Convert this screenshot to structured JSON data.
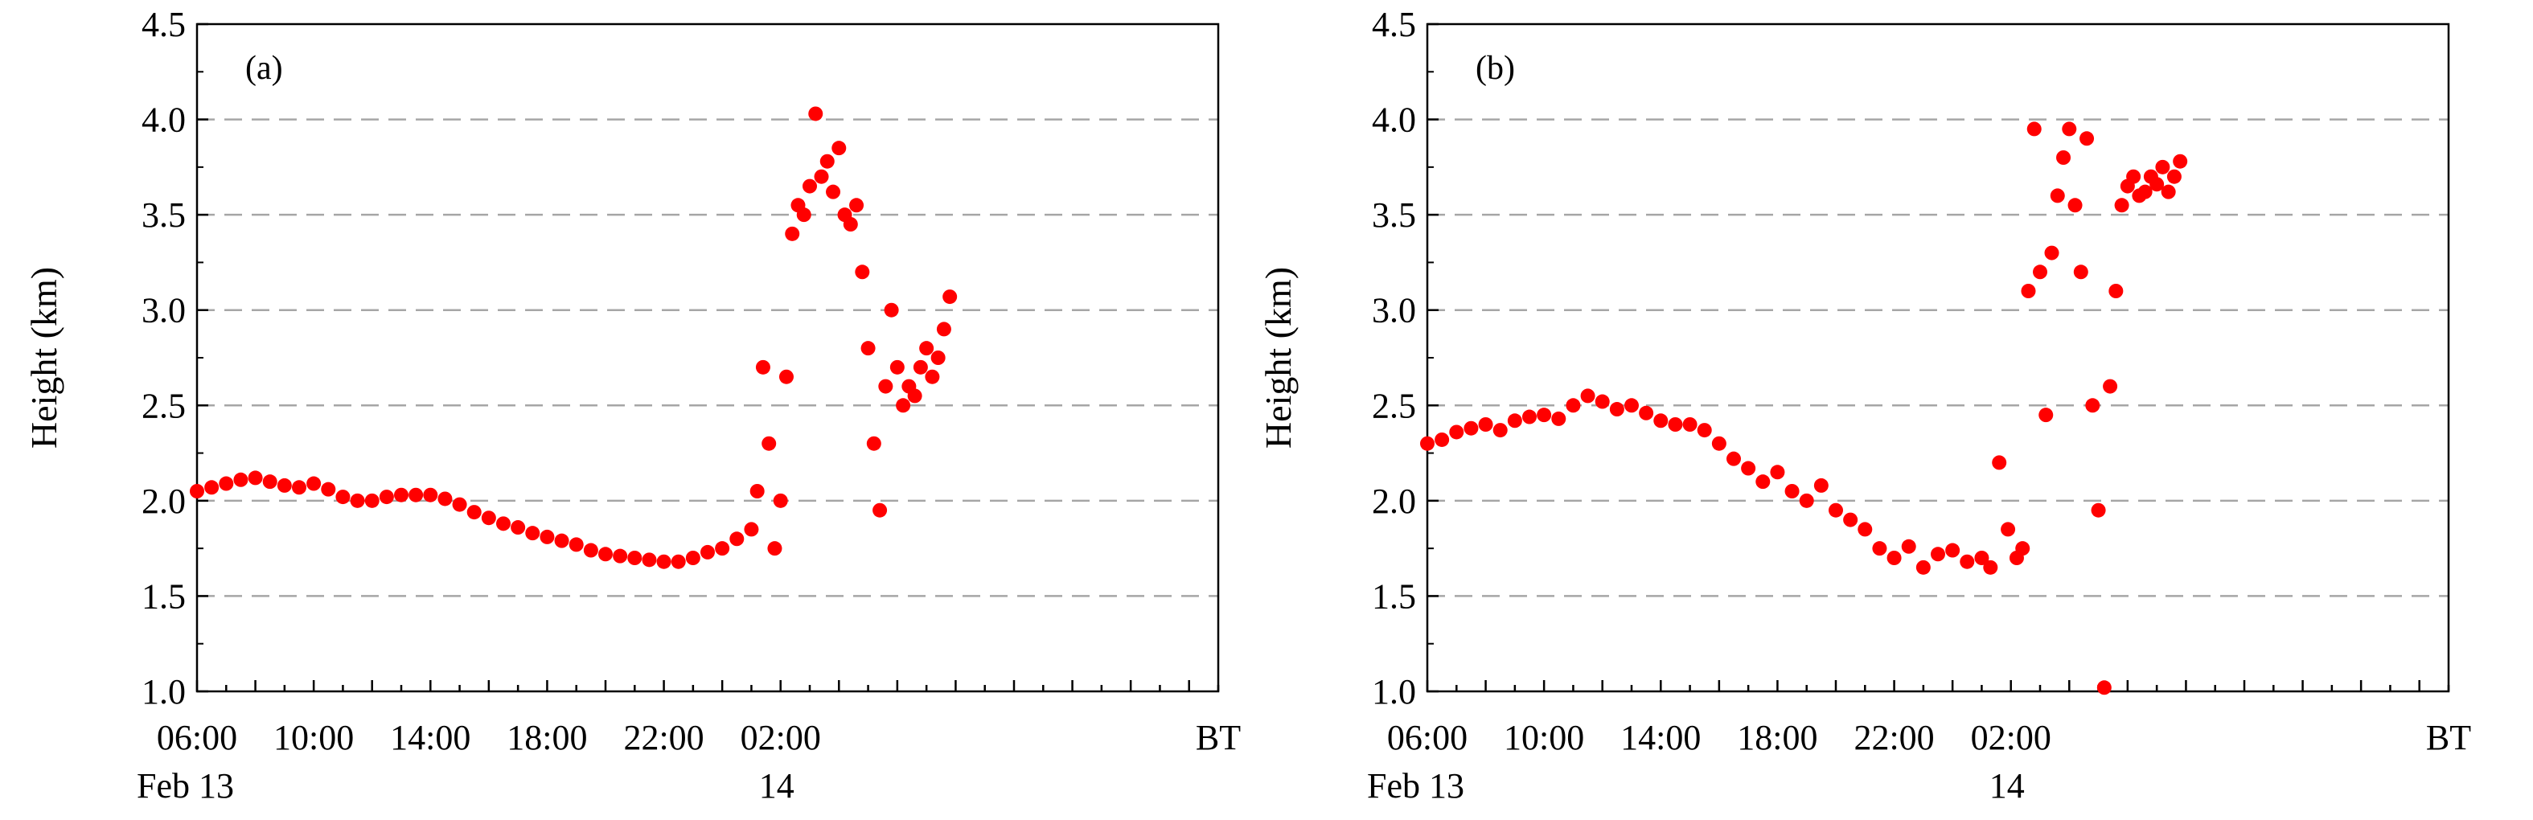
{
  "colors": {
    "marker": "#ff0000",
    "grid": "#a6a6a6",
    "axis": "#000000"
  },
  "chart_data": [
    {
      "type": "scatter",
      "panel_label": "(a)",
      "ylabel": "Height (km)",
      "xlabel": "",
      "x_unit_label": "BT",
      "x_hours_range": [
        6,
        41
      ],
      "ylim": [
        1.0,
        4.5
      ],
      "yticks": [
        "1.0",
        "1.5",
        "2.0",
        "2.5",
        "3.0",
        "3.5",
        "4.0",
        "4.5"
      ],
      "xticks": [
        {
          "hour": 6,
          "label": "06:00",
          "date": "Feb 13"
        },
        {
          "hour": 10,
          "label": "10:00",
          "date": ""
        },
        {
          "hour": 14,
          "label": "14:00",
          "date": ""
        },
        {
          "hour": 18,
          "label": "18:00",
          "date": ""
        },
        {
          "hour": 22,
          "label": "22:00",
          "date": ""
        },
        {
          "hour": 26,
          "label": "02:00",
          "date": "14"
        }
      ],
      "grid": "dashed horizontal at 1.5–4.0",
      "series": [
        {
          "name": "height",
          "x_hours": [
            6.0,
            6.5,
            7.0,
            7.5,
            8.0,
            8.5,
            9.0,
            9.5,
            10.0,
            10.5,
            11.0,
            11.5,
            12.0,
            12.5,
            13.0,
            13.5,
            14.0,
            14.5,
            15.0,
            15.5,
            16.0,
            16.5,
            17.0,
            17.5,
            18.0,
            18.5,
            19.0,
            19.5,
            20.0,
            20.5,
            21.0,
            21.5,
            22.0,
            22.5,
            23.0,
            23.5,
            24.0,
            24.5,
            25.0,
            25.2,
            25.4,
            25.6,
            25.8,
            26.0,
            26.2,
            26.4,
            26.6,
            26.8,
            27.0,
            27.2,
            27.4,
            27.6,
            27.8,
            28.0,
            28.2,
            28.4,
            28.6,
            28.8,
            29.0,
            29.2,
            29.4,
            29.6,
            29.8,
            30.0,
            30.2,
            30.4,
            30.6,
            30.8,
            31.0,
            31.2,
            31.4,
            31.6,
            31.8
          ],
          "y_km": [
            2.05,
            2.07,
            2.09,
            2.11,
            2.12,
            2.1,
            2.08,
            2.07,
            2.09,
            2.06,
            2.02,
            2.0,
            2.0,
            2.02,
            2.03,
            2.03,
            2.03,
            2.01,
            1.98,
            1.94,
            1.91,
            1.88,
            1.86,
            1.83,
            1.81,
            1.79,
            1.77,
            1.74,
            1.72,
            1.71,
            1.7,
            1.69,
            1.68,
            1.68,
            1.7,
            1.73,
            1.75,
            1.8,
            1.85,
            2.05,
            2.7,
            2.3,
            1.75,
            2.0,
            2.65,
            3.4,
            3.55,
            3.5,
            3.65,
            4.03,
            3.7,
            3.78,
            3.62,
            3.85,
            3.5,
            3.45,
            3.55,
            3.2,
            2.8,
            2.3,
            1.95,
            2.6,
            3.0,
            2.7,
            2.5,
            2.6,
            2.55,
            2.7,
            2.8,
            2.65,
            2.75,
            2.9,
            3.07
          ]
        }
      ]
    },
    {
      "type": "scatter",
      "panel_label": "(b)",
      "ylabel": "Height (km)",
      "xlabel": "",
      "x_unit_label": "BT",
      "x_hours_range": [
        6,
        41
      ],
      "ylim": [
        1.0,
        4.5
      ],
      "yticks": [
        "1.0",
        "1.5",
        "2.0",
        "2.5",
        "3.0",
        "3.5",
        "4.0",
        "4.5"
      ],
      "xticks": [
        {
          "hour": 6,
          "label": "06:00",
          "date": "Feb 13"
        },
        {
          "hour": 10,
          "label": "10:00",
          "date": ""
        },
        {
          "hour": 14,
          "label": "14:00",
          "date": ""
        },
        {
          "hour": 18,
          "label": "18:00",
          "date": ""
        },
        {
          "hour": 22,
          "label": "22:00",
          "date": ""
        },
        {
          "hour": 26,
          "label": "02:00",
          "date": "14"
        }
      ],
      "grid": "dashed horizontal at 1.5–4.0",
      "series": [
        {
          "name": "height",
          "x_hours": [
            6.0,
            6.5,
            7.0,
            7.5,
            8.0,
            8.5,
            9.0,
            9.5,
            10.0,
            10.5,
            11.0,
            11.5,
            12.0,
            12.5,
            13.0,
            13.5,
            14.0,
            14.5,
            15.0,
            15.5,
            16.0,
            16.5,
            17.0,
            17.5,
            18.0,
            18.5,
            19.0,
            19.5,
            20.0,
            20.5,
            21.0,
            21.5,
            22.0,
            22.5,
            23.0,
            23.5,
            24.0,
            24.5,
            25.0,
            25.3,
            25.6,
            25.9,
            26.2,
            26.4,
            26.6,
            26.8,
            27.0,
            27.2,
            27.4,
            27.6,
            27.8,
            28.0,
            28.2,
            28.4,
            28.6,
            28.8,
            29.0,
            29.2,
            29.4,
            29.6,
            29.8,
            30.0,
            30.2,
            30.4,
            30.6,
            30.8,
            31.0,
            31.2,
            31.4,
            31.6,
            31.8
          ],
          "y_km": [
            2.3,
            2.32,
            2.36,
            2.38,
            2.4,
            2.37,
            2.42,
            2.44,
            2.45,
            2.43,
            2.5,
            2.55,
            2.52,
            2.48,
            2.5,
            2.46,
            2.42,
            2.4,
            2.4,
            2.37,
            2.3,
            2.22,
            2.17,
            2.1,
            2.15,
            2.05,
            2.0,
            2.08,
            1.95,
            1.9,
            1.85,
            1.75,
            1.7,
            1.76,
            1.65,
            1.72,
            1.74,
            1.68,
            1.7,
            1.65,
            2.2,
            1.85,
            1.7,
            1.75,
            3.1,
            3.95,
            3.2,
            2.45,
            3.3,
            3.6,
            3.8,
            3.95,
            3.55,
            3.2,
            3.9,
            2.5,
            1.95,
            1.02,
            2.6,
            3.1,
            3.55,
            3.65,
            3.7,
            3.6,
            3.62,
            3.7,
            3.66,
            3.75,
            3.62,
            3.7,
            3.78
          ]
        }
      ]
    }
  ]
}
